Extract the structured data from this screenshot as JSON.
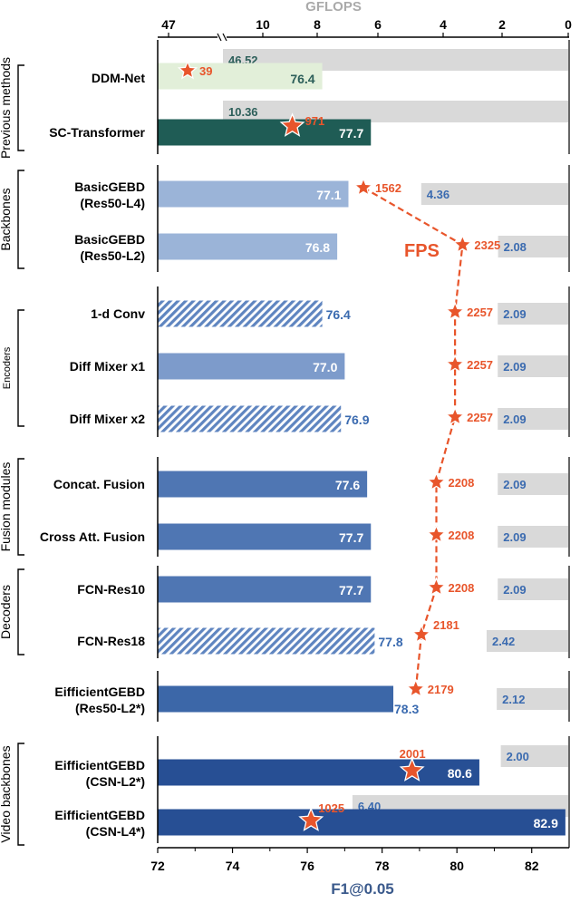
{
  "chart_data": {
    "type": "bar",
    "title": "",
    "xlabel": "F1@0.05",
    "top_axis_label": "GFLOPS",
    "xlim": [
      72,
      83
    ],
    "x_ticks": [
      "72",
      "74",
      "76",
      "78",
      "80",
      "82"
    ],
    "gflops_ticks": [
      "47",
      "10",
      "8",
      "6",
      "4",
      "2",
      "0"
    ],
    "fps_label": "FPS",
    "groups": [
      {
        "label": "Previous methods",
        "rows": [
          0,
          1
        ]
      },
      {
        "label": "Backbones",
        "rows": [
          2,
          3
        ]
      },
      {
        "label": "Encoders",
        "rows": [
          4,
          5,
          6
        ]
      },
      {
        "label": "Fusion modules",
        "rows": [
          7,
          8
        ]
      },
      {
        "label": "Decoders",
        "rows": [
          9,
          10
        ]
      },
      {
        "label": "",
        "rows": [
          11
        ]
      },
      {
        "label": "Video backbones",
        "rows": [
          12,
          13
        ]
      }
    ],
    "rows": [
      {
        "name": "DDM-Net",
        "f1": 76.4,
        "f1_label": "76.4",
        "gflops_label": "46.52",
        "gflops_bar": 12.5,
        "fps": 39,
        "fps_label": "39",
        "fps_pos": 72.8,
        "bar_color": "#e2efd9",
        "label_color": "#2d5f5a",
        "hatched": false,
        "gflops_label_color": "#2d5f5a"
      },
      {
        "name": "SC-Transformer",
        "f1": 77.7,
        "f1_label": "77.7",
        "gflops_label": "10.36",
        "gflops_bar": 10.36,
        "fps": 971,
        "fps_label": "971",
        "fps_pos": 75.6,
        "bar_color": "#1f5c55",
        "label_color": "#ffffff",
        "hatched": false,
        "gflops_label_color": "#2d5f5a"
      },
      {
        "name": "BasicGEBD\n(Res50-L4)",
        "f1": 77.1,
        "f1_label": "77.1",
        "gflops_label": "4.36",
        "gflops_bar": 4.36,
        "fps": 1562,
        "fps_label": "1562",
        "fps_pos": 77.5,
        "bar_color": "#9bb4d8",
        "label_color": "#ffffff",
        "hatched": false,
        "gflops_label_color": "#3b6bb0"
      },
      {
        "name": "BasicGEBD\n(Res50-L2)",
        "f1": 76.8,
        "f1_label": "76.8",
        "gflops_label": "2.08",
        "gflops_bar": 2.08,
        "fps": 2325,
        "fps_label": "2325",
        "fps_pos": 80.15,
        "bar_color": "#9bb4d8",
        "label_color": "#ffffff",
        "hatched": false,
        "gflops_label_color": "#3b6bb0"
      },
      {
        "name": "1-d Conv",
        "f1": 76.4,
        "f1_label": "76.4",
        "gflops_label": "2.09",
        "gflops_bar": 2.09,
        "fps": 2257,
        "fps_label": "2257",
        "fps_pos": 79.95,
        "bar_color": "#7d9bcb",
        "label_color": "#3b6bb0",
        "hatched": true,
        "gflops_label_color": "#3b6bb0"
      },
      {
        "name": "Diff Mixer x1",
        "f1": 77.0,
        "f1_label": "77.0",
        "gflops_label": "2.09",
        "gflops_bar": 2.09,
        "fps": 2257,
        "fps_label": "2257",
        "fps_pos": 79.95,
        "bar_color": "#7d9bcb",
        "label_color": "#ffffff",
        "hatched": false,
        "gflops_label_color": "#3b6bb0"
      },
      {
        "name": "Diff Mixer x2",
        "f1": 76.9,
        "f1_label": "76.9",
        "gflops_label": "2.09",
        "gflops_bar": 2.09,
        "fps": 2257,
        "fps_label": "2257",
        "fps_pos": 79.95,
        "bar_color": "#7d9bcb",
        "label_color": "#3b6bb0",
        "hatched": true,
        "gflops_label_color": "#3b6bb0"
      },
      {
        "name": "Concat. Fusion",
        "f1": 77.6,
        "f1_label": "77.6",
        "gflops_label": "2.09",
        "gflops_bar": 2.09,
        "fps": 2208,
        "fps_label": "2208",
        "fps_pos": 79.45,
        "bar_color": "#4f76b3",
        "label_color": "#ffffff",
        "hatched": false,
        "gflops_label_color": "#3b6bb0"
      },
      {
        "name": "Cross Att. Fusion",
        "f1": 77.7,
        "f1_label": "77.7",
        "gflops_label": "2.09",
        "gflops_bar": 2.09,
        "fps": 2208,
        "fps_label": "2208",
        "fps_pos": 79.45,
        "bar_color": "#4f76b3",
        "label_color": "#ffffff",
        "hatched": false,
        "gflops_label_color": "#3b6bb0"
      },
      {
        "name": "FCN-Res10",
        "f1": 77.7,
        "f1_label": "77.7",
        "gflops_label": "2.09",
        "gflops_bar": 2.09,
        "fps": 2208,
        "fps_label": "2208",
        "fps_pos": 79.45,
        "bar_color": "#4f76b3",
        "label_color": "#ffffff",
        "hatched": false,
        "gflops_label_color": "#3b6bb0"
      },
      {
        "name": "FCN-Res18",
        "f1": 77.8,
        "f1_label": "77.8",
        "gflops_label": "2.42",
        "gflops_bar": 2.42,
        "fps": 2181,
        "fps_label": "2181",
        "fps_pos": 79.05,
        "bar_color": "#4f76b3",
        "label_color": "#3b6bb0",
        "hatched": true,
        "gflops_label_color": "#3b6bb0"
      },
      {
        "name": "EifficientGEBD\n(Res50-L2*)",
        "f1": 78.3,
        "f1_label": "78.3",
        "gflops_label": "2.12",
        "gflops_bar": 2.12,
        "fps": 2179,
        "fps_label": "2179",
        "fps_pos": 78.9,
        "bar_color": "#3c67a8",
        "label_color": "#3b6bb0",
        "hatched": false,
        "gflops_label_color": "#3b6bb0"
      },
      {
        "name": "EifficientGEBD\n(CSN-L2*)",
        "f1": 80.6,
        "f1_label": "80.6",
        "gflops_label": "2.00",
        "gflops_bar": 2.0,
        "fps": 2001,
        "fps_label": "2001",
        "fps_pos": 78.8,
        "bar_color": "#274f94",
        "label_color": "#ffffff",
        "hatched": false,
        "gflops_label_color": "#3b6bb0"
      },
      {
        "name": "EifficientGEBD\n(CSN-L4*)",
        "f1": 82.9,
        "f1_label": "82.9",
        "gflops_label": "6.40",
        "gflops_bar": 6.4,
        "fps": 1025,
        "fps_label": "1025",
        "fps_pos": 76.1,
        "bar_color": "#274f94",
        "label_color": "#ffffff",
        "hatched": false,
        "gflops_label_color": "#3b6bb0"
      }
    ],
    "colors": {
      "fps": "#e8552b",
      "gflops_bar": "#d9d9d9",
      "axis_label": "#3b5a8c",
      "top_axis_label": "#aaaaaa"
    }
  }
}
